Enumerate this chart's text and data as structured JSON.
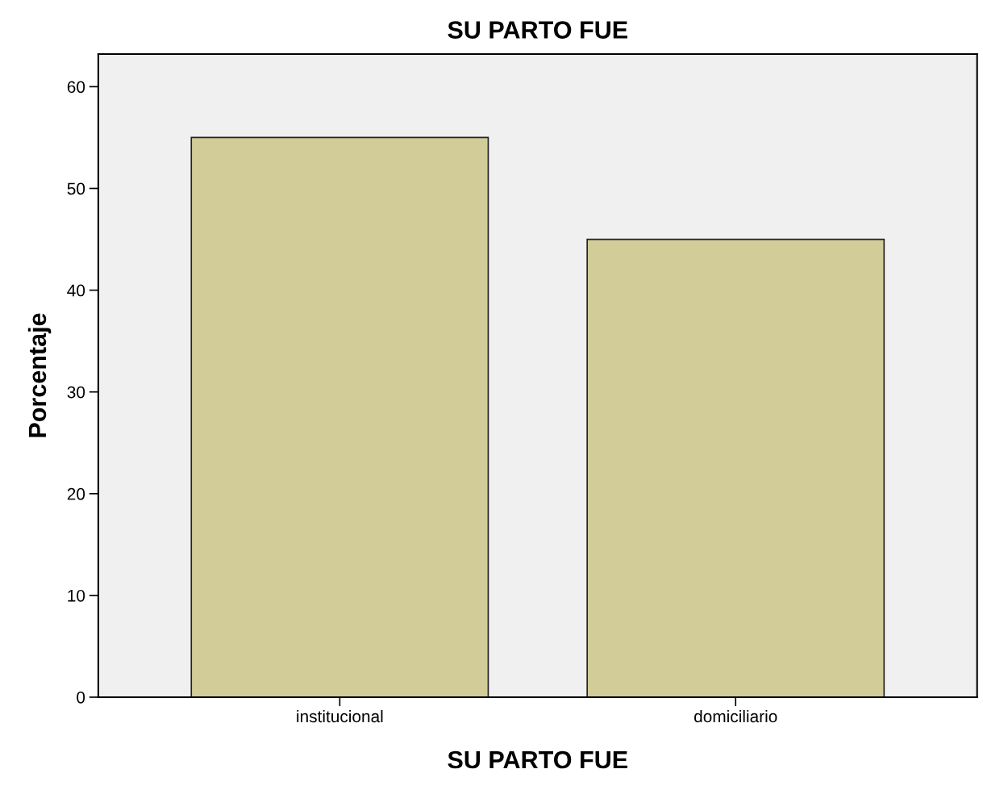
{
  "chart_data": {
    "type": "bar",
    "title": "SU PARTO FUE",
    "xlabel": "SU PARTO FUE",
    "ylabel": "Porcentaje",
    "categories": [
      "institucional",
      "domiciliario"
    ],
    "values": [
      55,
      45
    ],
    "color": "#d2cd98",
    "ylim": [
      0,
      63.2
    ],
    "yticks": [
      0,
      10,
      20,
      30,
      40,
      50,
      60
    ],
    "grid": false,
    "legend": false
  }
}
